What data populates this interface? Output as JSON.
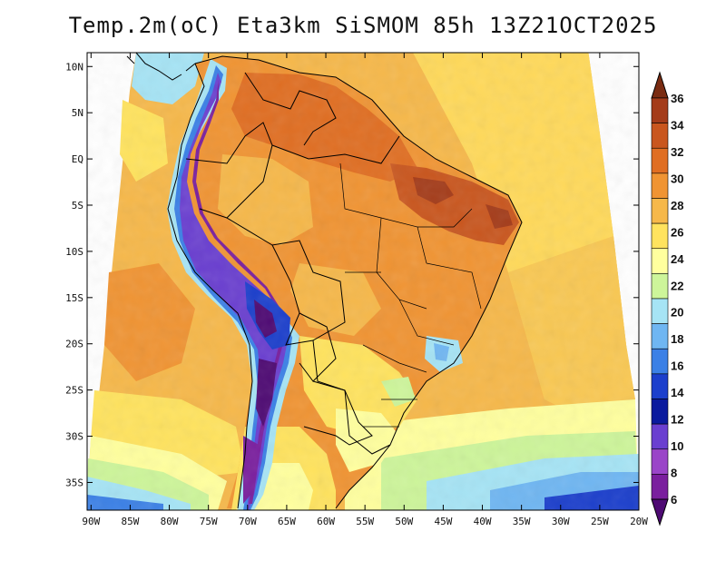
{
  "title": "Temp.2m(oC) Eta3km SiSMOM 85h 13Z21OCT2025",
  "map": {
    "lat_labels": [
      "10N",
      "5N",
      "EQ",
      "5S",
      "10S",
      "15S",
      "20S",
      "25S",
      "30S",
      "35S"
    ],
    "lat_values": [
      10,
      5,
      0,
      -5,
      -10,
      -15,
      -20,
      -25,
      -30,
      -35
    ],
    "lon_labels": [
      "90W",
      "85W",
      "80W",
      "75W",
      "70W",
      "65W",
      "60W",
      "55W",
      "50W",
      "45W",
      "40W",
      "35W",
      "30W",
      "25W",
      "20W"
    ],
    "lon_values": [
      -90,
      -85,
      -80,
      -75,
      -70,
      -65,
      -60,
      -55,
      -50,
      -45,
      -40,
      -35,
      -30,
      -25,
      -20
    ],
    "extent": {
      "lon_min": -90.5,
      "lon_max": -20,
      "lat_min": -38,
      "lat_max": 11.5
    }
  },
  "colorbar": {
    "unit": "oC",
    "labels": [
      "36",
      "34",
      "32",
      "30",
      "28",
      "26",
      "24",
      "22",
      "20",
      "18",
      "16",
      "14",
      "12",
      "10",
      "8",
      "6"
    ],
    "colors": [
      "#7a2c12",
      "#a43c1a",
      "#c9561e",
      "#e06e22",
      "#f09433",
      "#f6b84a",
      "#ffe35e",
      "#ffff9e",
      "#cdf59a",
      "#a6e4f5",
      "#6fb6f2",
      "#3b80e6",
      "#1c3fcc",
      "#0a1a9e",
      "#6a3fd0",
      "#9a45c8",
      "#7a1f9e",
      "#4e0a73"
    ]
  }
}
